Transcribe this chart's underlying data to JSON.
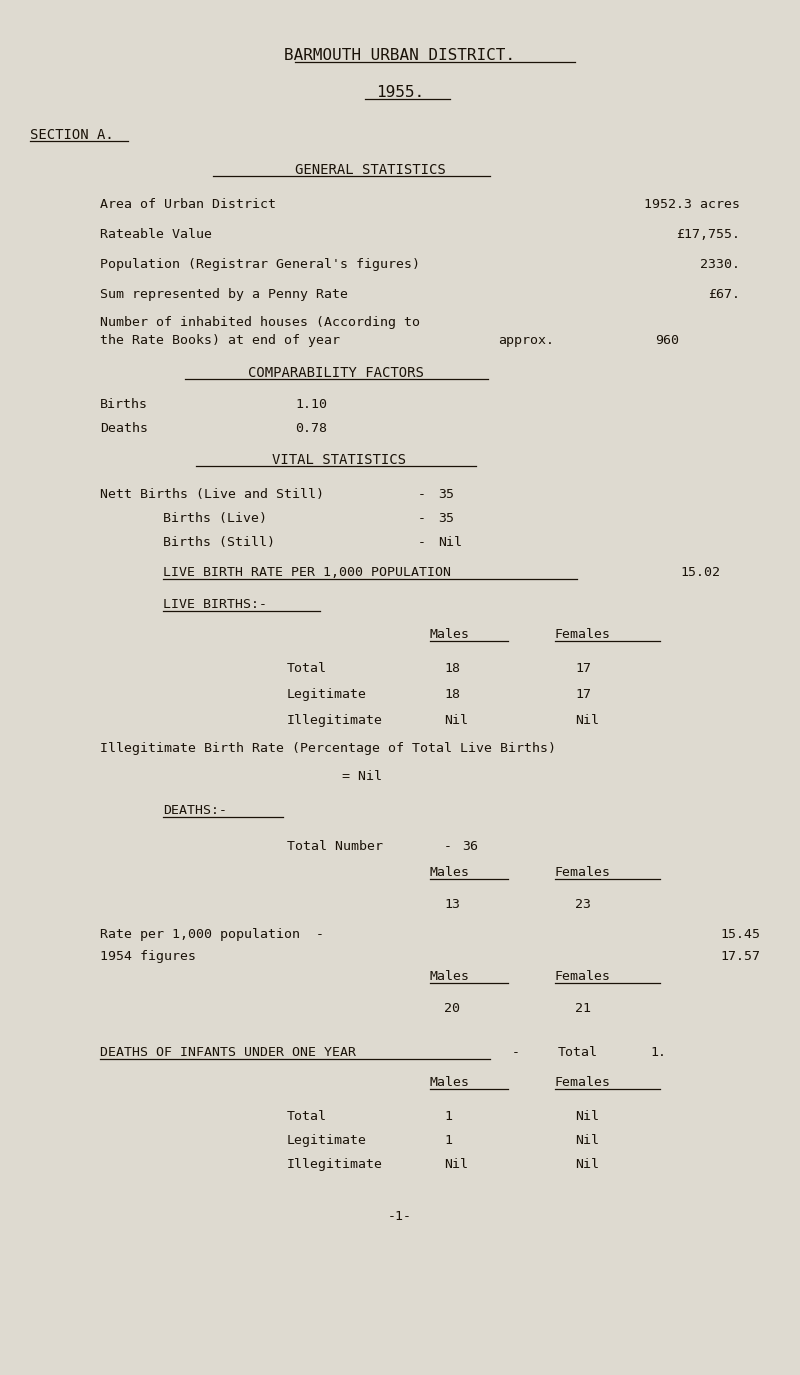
{
  "bg_color": "#dedad0",
  "text_color": "#1a1208",
  "title1": "BARMOUTH URBAN DISTRICT.",
  "title2": "1955.",
  "section": "SECTION A.",
  "gen_stats_heading": "GENERAL STATISTICS",
  "houses_label1": "Number of inhabited houses (According to",
  "houses_label2": "the Rate Books) at end of year",
  "houses_approx": "approx.",
  "houses_value": "960",
  "comp_heading": "COMPARABILITY FACTORS",
  "comp_births_label": "Births",
  "comp_births_value": "1.10",
  "comp_deaths_label": "Deaths",
  "comp_deaths_value": "0.78",
  "vital_heading": "VITAL STATISTICS",
  "nett_births_label": "Nett Births (Live and Still)",
  "nett_births_dash": "-",
  "nett_births_value": "35",
  "births_live_label": "Births (Live)",
  "births_live_dash": "-",
  "births_live_value": "35",
  "births_still_label": "Births (Still)",
  "births_still_dash": "-",
  "births_still_value": "Nil",
  "live_birth_rate_label": "LIVE BIRTH RATE PER 1,000 POPULATION",
  "live_birth_rate_value": "15.02",
  "live_births_heading": "LIVE BIRTHS:-",
  "lb_col_males": "Males",
  "lb_col_females": "Females",
  "lb_total_label": "Total",
  "lb_total_males": "18",
  "lb_total_females": "17",
  "lb_legit_label": "Legitimate",
  "lb_legit_males": "18",
  "lb_legit_females": "17",
  "lb_illegit_label": "Illegitimate",
  "lb_illegit_males": "Nil",
  "lb_illegit_females": "Nil",
  "illegit_rate_label": "Illegitimate Birth Rate (Percentage of Total Live Births)",
  "illegit_rate_value": "= Nil",
  "deaths_heading": "DEATHS:-",
  "deaths_total_label": "Total Number",
  "deaths_total_dash": "-",
  "deaths_total_value": "36",
  "deaths_col_males": "Males",
  "deaths_col_females": "Females",
  "deaths_males_value": "13",
  "deaths_females_value": "23",
  "deaths_rate_label": "Rate per 1,000 population  -",
  "deaths_rate_value": "15.45",
  "deaths_1954_label": "1954 figures",
  "deaths_1954_value": "17.57",
  "deaths_1954_col_males": "Males",
  "deaths_1954_col_females": "Females",
  "deaths_1954_males": "20",
  "deaths_1954_females": "21",
  "infants_heading": "DEATHS OF INFANTS UNDER ONE YEAR",
  "infants_dash": "-",
  "infants_total_label": "Total",
  "infants_total_value": "1.",
  "infants_col_males": "Males",
  "infants_col_females": "Females",
  "infants_total_row_label": "Total",
  "infants_total_males": "1",
  "infants_total_females": "Nil",
  "infants_legit_label": "Legitimate",
  "infants_legit_males": "1",
  "infants_legit_females": "Nil",
  "infants_illegit_label": "Illegitimate",
  "infants_illegit_males": "Nil",
  "infants_illegit_females": "Nil",
  "page_number": "-1-"
}
